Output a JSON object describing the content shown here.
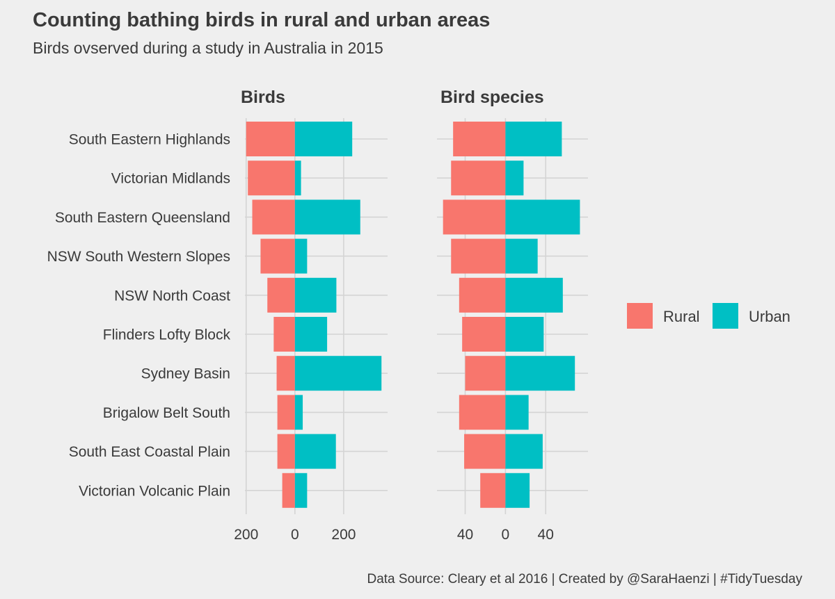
{
  "chart_data": {
    "type": "bar",
    "orientation": "horizontal-diverging",
    "title": "Counting bathing birds in rural and urban areas",
    "subtitle": "Birds ovserved during a study in Australia in 2015",
    "caption": "Data Source: Cleary et al 2016 | Created by @SaraHaenzi | #TidyTuesday",
    "categories": [
      "South Eastern Highlands",
      "Victorian Midlands",
      "South Eastern Queensland",
      "NSW South Western Slopes",
      "NSW North Coast",
      "Flinders Lofty Block",
      "Sydney Basin",
      "Brigalow Belt South",
      "South East Coastal Plain",
      "Victorian Volcanic Plain"
    ],
    "panels": [
      {
        "title": "Birds",
        "xlim": [
          -205,
          380
        ],
        "ticks": [
          -200,
          0,
          200
        ],
        "tick_labels": [
          "200",
          "0",
          "200"
        ],
        "series": [
          {
            "name": "Rural",
            "color": "#F8766D",
            "values": [
              200,
              193,
              175,
              141,
              113,
              87,
              75,
              72,
              72,
              52
            ]
          },
          {
            "name": "Urban",
            "color": "#00BFC4",
            "values": [
              235,
              25,
              268,
              50,
              170,
              132,
              355,
              32,
              168,
              50
            ]
          }
        ]
      },
      {
        "title": "Bird species",
        "xlim": [
          -68,
          82
        ],
        "ticks": [
          -40,
          0,
          40
        ],
        "tick_labels": [
          "40",
          "0",
          "40"
        ],
        "series": [
          {
            "name": "Rural",
            "color": "#F8766D",
            "values": [
              52,
              54,
              62,
              54,
              46,
              43,
              40,
              46,
              41,
              25
            ]
          },
          {
            "name": "Urban",
            "color": "#00BFC4",
            "values": [
              56,
              18,
              74,
              32,
              57,
              38,
              69,
              23,
              37,
              24
            ]
          }
        ]
      }
    ],
    "legend": {
      "position": "right",
      "items": [
        {
          "label": "Rural",
          "color": "#F8766D"
        },
        {
          "label": "Urban",
          "color": "#00BFC4"
        }
      ]
    },
    "grid": true
  }
}
